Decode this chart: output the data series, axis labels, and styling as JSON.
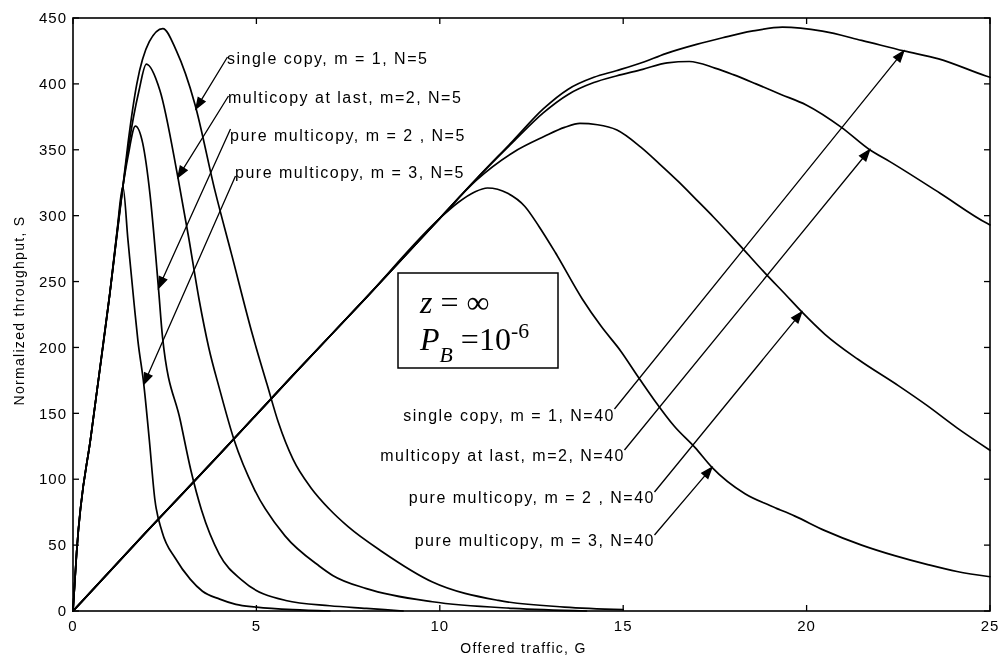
{
  "chart_data": {
    "type": "line",
    "xlabel": "Offered traffic, G",
    "ylabel": "Normalized throughput, S",
    "xlim": [
      0,
      25
    ],
    "ylim": [
      0,
      450
    ],
    "xticks": [
      0,
      5,
      10,
      15,
      20,
      25
    ],
    "yticks": [
      0,
      50,
      100,
      150,
      200,
      250,
      300,
      350,
      400,
      450
    ],
    "series": [
      {
        "color": "#000000",
        "x": [
          0,
          0.1,
          0.5,
          1.0,
          1.36,
          1.5,
          1.74,
          2.08,
          2.45,
          2.82,
          3.32,
          3.87,
          4.32,
          4.9,
          5.29,
          5.6,
          6.0,
          6.5,
          7.0,
          7.5,
          8.43,
          9.8,
          11.6,
          13.4,
          15
        ],
        "values": [
          0,
          45,
          135,
          240,
          322,
          355,
          400,
          432,
          442,
          425,
          385,
          319,
          271,
          209,
          172,
          143,
          115,
          93,
          77,
          64,
          45,
          22,
          8,
          3,
          1
        ]
      },
      {
        "color": "#000000",
        "x": [
          0,
          0.1,
          0.5,
          1.0,
          1.36,
          1.5,
          1.8,
          2.0,
          2.37,
          2.86,
          3.15,
          3.44,
          3.7,
          4.0,
          4.39,
          4.95,
          5.78,
          6.72,
          7.08,
          8,
          9.8,
          12,
          14
        ],
        "values": [
          0,
          45,
          135,
          240,
          322,
          350,
          395,
          415,
          395,
          329,
          284,
          236,
          200,
          168,
          130,
          92,
          57,
          34,
          27,
          17,
          7,
          2,
          0
        ]
      },
      {
        "color": "#000000",
        "x": [
          0,
          0.1,
          0.5,
          1.0,
          1.36,
          1.5,
          1.7,
          1.9,
          2.1,
          2.33,
          2.44,
          2.93,
          3.22,
          3.51,
          3.99,
          4.62,
          5.8,
          7,
          8,
          9
        ],
        "values": [
          0,
          45,
          135,
          240,
          322,
          345,
          368,
          355,
          316,
          245,
          208,
          144,
          106,
          76,
          43,
          23,
          8,
          4,
          2,
          0
        ]
      },
      {
        "color": "#000000",
        "x": [
          0,
          0.1,
          0.5,
          1.0,
          1.2,
          1.36,
          1.5,
          1.67,
          1.77,
          1.93,
          2.08,
          2.23,
          2.43,
          2.79,
          3.2,
          3.53,
          4.0,
          4.44,
          5.0,
          6,
          7
        ],
        "values": [
          0,
          45,
          135,
          240,
          288,
          322,
          281,
          232,
          205,
          172,
          130,
          85,
          60,
          40,
          24,
          15,
          9,
          5,
          3,
          1,
          0
        ]
      },
      {
        "color": "#000000",
        "x": [
          0,
          2,
          4,
          6,
          8,
          10,
          11,
          12,
          12.82,
          13.5,
          14.2,
          14.81,
          15.5,
          16.16,
          17,
          17.71,
          18.5,
          19.34,
          20.43,
          21.5,
          22.65,
          23.6,
          24.89,
          25
        ],
        "values": [
          0,
          60,
          119,
          179,
          238,
          298,
          328,
          357,
          381,
          396,
          405,
          410,
          416,
          423,
          430,
          435,
          440,
          443,
          440,
          433,
          425,
          419,
          406,
          405
        ]
      },
      {
        "color": "#000000",
        "x": [
          0,
          2,
          4,
          6,
          8,
          10,
          11,
          12,
          12.82,
          13.5,
          14.2,
          14.81,
          15.53,
          16.2,
          16.8,
          17.5,
          18.0,
          18.62,
          19.3,
          19.99,
          20.95,
          21.72,
          22.27,
          23.64,
          24.93,
          25
        ],
        "values": [
          0,
          60,
          119,
          179,
          238,
          298,
          328,
          356,
          378,
          392,
          401,
          406,
          411,
          416,
          417,
          412,
          407,
          400,
          392,
          384,
          367,
          350,
          341,
          317,
          294,
          293
        ]
      },
      {
        "color": "#000000",
        "x": [
          0,
          2,
          4,
          6,
          8,
          10,
          11,
          12,
          12.84,
          13.4,
          13.82,
          14.3,
          14.83,
          15.48,
          16.0,
          16.5,
          17.0,
          17.46,
          18.13,
          18.88,
          19.43,
          19.87,
          20.5,
          21.4,
          22.5,
          23.28,
          24.1,
          25
        ],
        "values": [
          0,
          60,
          119,
          179,
          238,
          298,
          327,
          348,
          360,
          367,
          370,
          369,
          365,
          352,
          339,
          326,
          312,
          299,
          279,
          256,
          240,
          227,
          210,
          191,
          171,
          156,
          139,
          122
        ]
      },
      {
        "color": "#000000",
        "x": [
          0,
          2,
          4,
          6,
          8,
          10,
          10.5,
          10.95,
          11.3,
          11.85,
          12.32,
          12.7,
          13.15,
          13.88,
          14.4,
          14.94,
          15.4,
          15.85,
          16.4,
          16.96,
          17.42,
          18.32,
          19,
          19.68,
          20.5,
          21.5,
          22.4,
          23.33,
          24.1,
          25
        ],
        "values": [
          0,
          60,
          119,
          179,
          238,
          298,
          310,
          318,
          321,
          317,
          307,
          292,
          272,
          237,
          216,
          197,
          178,
          160,
          140,
          124,
          109,
          89,
          80,
          72,
          61,
          50,
          42,
          35,
          30,
          26
        ]
      }
    ],
    "annotations": [
      {
        "text": "single copy, m = 1, N=5",
        "x": 3.35,
        "y": 381
      },
      {
        "text": "multicopy at last, m=2, N=5",
        "x": 2.86,
        "y": 329
      },
      {
        "text": "pure multicopy, m = 2 , N=5",
        "x": 2.33,
        "y": 245
      },
      {
        "text": "pure multicopy, m = 3, N=5",
        "x": 1.93,
        "y": 172
      },
      {
        "text": "single copy, m = 1, N=40",
        "x": 22.65,
        "y": 425
      },
      {
        "text": "multicopy at last, m=2, N=40",
        "x": 21.72,
        "y": 350
      },
      {
        "text": "pure multicopy, m = 2 , N=40",
        "x": 19.87,
        "y": 227
      },
      {
        "text": "pure multicopy, m = 3, N=40",
        "x": 17.42,
        "y": 109
      },
      "z = ∞",
      "P$_{B}$ =10$^{-6}$"
    ]
  }
}
